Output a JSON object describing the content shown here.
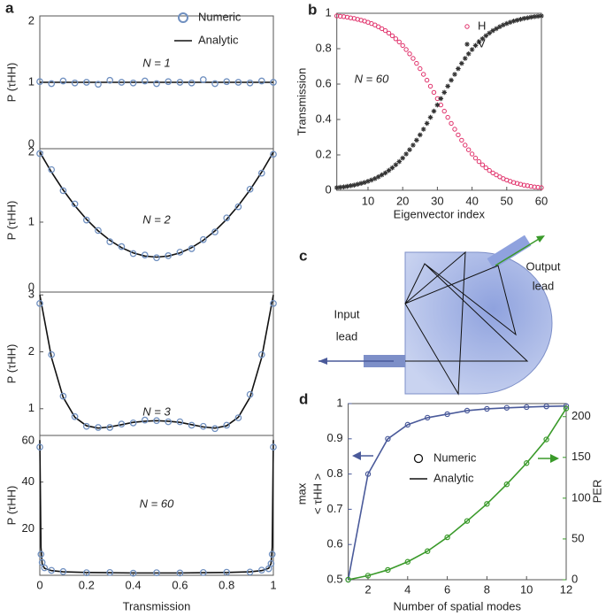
{
  "chart_data": [
    {
      "type": "line",
      "label": "a",
      "xlabel": "Transmission",
      "xlim": [
        0,
        1
      ],
      "xticks": [
        0,
        0.2,
        0.4,
        0.6,
        0.8,
        1
      ],
      "legend": [
        "Numeric",
        "Analytic"
      ],
      "numeric_color": "#7090c0",
      "analytic_color": "#111111",
      "subplots": [
        {
          "annotation": "N = 1",
          "ylabel": "P (τHH)",
          "ylim": [
            0,
            2
          ],
          "yticks": [
            0,
            1,
            2
          ],
          "x": [
            0,
            0.05,
            0.1,
            0.15,
            0.2,
            0.25,
            0.3,
            0.35,
            0.4,
            0.45,
            0.5,
            0.55,
            0.6,
            0.65,
            0.7,
            0.75,
            0.8,
            0.85,
            0.9,
            0.95,
            1
          ],
          "numeric": [
            1.01,
            0.98,
            1.02,
            0.99,
            1.0,
            0.97,
            1.03,
            1.0,
            0.99,
            1.02,
            0.98,
            1.01,
            1.0,
            0.99,
            1.04,
            0.98,
            1.01,
            1.0,
            0.99,
            1.02,
            1.0
          ],
          "analytic": [
            1,
            1,
            1,
            1,
            1,
            1,
            1,
            1,
            1,
            1,
            1,
            1,
            1,
            1,
            1,
            1,
            1,
            1,
            1,
            1,
            1
          ]
        },
        {
          "annotation": "N = 2",
          "ylabel": "P (τHH)",
          "ylim": [
            0,
            2.05
          ],
          "yticks": [
            0,
            1,
            2
          ],
          "x": [
            0,
            0.05,
            0.1,
            0.15,
            0.2,
            0.25,
            0.3,
            0.35,
            0.4,
            0.45,
            0.5,
            0.55,
            0.6,
            0.65,
            0.7,
            0.75,
            0.8,
            0.85,
            0.9,
            0.95,
            1
          ],
          "numeric": [
            1.98,
            1.75,
            1.45,
            1.26,
            1.03,
            0.88,
            0.72,
            0.65,
            0.55,
            0.53,
            0.49,
            0.52,
            0.57,
            0.62,
            0.75,
            0.86,
            1.06,
            1.22,
            1.47,
            1.7,
            1.97
          ],
          "analytic": [
            2,
            1.715,
            1.46,
            1.235,
            1.04,
            0.875,
            0.74,
            0.635,
            0.56,
            0.515,
            0.5,
            0.515,
            0.56,
            0.635,
            0.74,
            0.875,
            1.04,
            1.235,
            1.46,
            1.715,
            2
          ]
        },
        {
          "annotation": "N = 3",
          "ylabel": "P (τHH)",
          "ylim": [
            0.53,
            3.05
          ],
          "yticks": [
            1,
            2,
            3
          ],
          "x": [
            0,
            0.05,
            0.1,
            0.15,
            0.2,
            0.25,
            0.3,
            0.35,
            0.4,
            0.45,
            0.5,
            0.55,
            0.6,
            0.65,
            0.7,
            0.75,
            0.8,
            0.85,
            0.9,
            0.95,
            1
          ],
          "numeric": [
            2.85,
            1.95,
            1.22,
            0.86,
            0.69,
            0.67,
            0.67,
            0.73,
            0.75,
            0.8,
            0.79,
            0.77,
            0.77,
            0.71,
            0.69,
            0.65,
            0.71,
            0.84,
            1.25,
            1.95,
            2.85
          ],
          "analytic": [
            3.0,
            1.9,
            1.2,
            0.85,
            0.7,
            0.66,
            0.68,
            0.72,
            0.76,
            0.78,
            0.79,
            0.78,
            0.76,
            0.72,
            0.68,
            0.66,
            0.7,
            0.85,
            1.2,
            1.9,
            3.0
          ]
        },
        {
          "annotation": "N = 60",
          "ylabel": "P (τHH)",
          "ylim": [
            0,
            60
          ],
          "yticks": [
            20,
            40,
            60
          ],
          "x": [
            0,
            0.005,
            0.01,
            0.02,
            0.05,
            0.1,
            0.2,
            0.3,
            0.4,
            0.5,
            0.6,
            0.7,
            0.8,
            0.9,
            0.95,
            0.98,
            0.99,
            0.995,
            1
          ],
          "numeric": [
            55,
            9,
            5.5,
            3.2,
            2.1,
            1.6,
            1.1,
            1.2,
            0.9,
            1.1,
            1,
            1.2,
            1.3,
            1.4,
            2.2,
            2.8,
            5,
            9,
            55
          ],
          "analytic": [
            58,
            12,
            5,
            3,
            2,
            1.5,
            1.2,
            1.1,
            1,
            1,
            1,
            1.1,
            1.2,
            1.5,
            2,
            3,
            5,
            12,
            58
          ]
        }
      ]
    },
    {
      "type": "scatter",
      "label": "b",
      "xlabel": "Eigenvector index",
      "ylabel": "Transmission",
      "annotation": "N = 60",
      "xlim": [
        1,
        60
      ],
      "xticks": [
        10,
        20,
        30,
        40,
        50,
        60
      ],
      "ylim": [
        0,
        1
      ],
      "yticks": [
        0,
        0.2,
        0.4,
        0.6,
        0.8,
        1
      ],
      "x": [
        1,
        2,
        3,
        4,
        5,
        6,
        7,
        8,
        9,
        10,
        11,
        12,
        13,
        14,
        15,
        16,
        17,
        18,
        19,
        20,
        21,
        22,
        23,
        24,
        25,
        26,
        27,
        28,
        29,
        30,
        31,
        32,
        33,
        34,
        35,
        36,
        37,
        38,
        39,
        40,
        41,
        42,
        43,
        44,
        45,
        46,
        47,
        48,
        49,
        50,
        51,
        52,
        53,
        54,
        55,
        56,
        57,
        58,
        59,
        60
      ],
      "series": [
        {
          "name": "H",
          "color": "#e0306a",
          "marker": "circle",
          "values": [
            0.985,
            0.983,
            0.981,
            0.978,
            0.974,
            0.971,
            0.966,
            0.961,
            0.956,
            0.949,
            0.942,
            0.934,
            0.924,
            0.913,
            0.902,
            0.888,
            0.873,
            0.856,
            0.838,
            0.818,
            0.795,
            0.771,
            0.745,
            0.717,
            0.687,
            0.655,
            0.622,
            0.588,
            0.553,
            0.518,
            0.482,
            0.447,
            0.412,
            0.378,
            0.345,
            0.313,
            0.283,
            0.255,
            0.229,
            0.205,
            0.182,
            0.162,
            0.144,
            0.127,
            0.112,
            0.098,
            0.087,
            0.076,
            0.066,
            0.058,
            0.051,
            0.044,
            0.039,
            0.034,
            0.029,
            0.026,
            0.022,
            0.019,
            0.017,
            0.015
          ]
        },
        {
          "name": "V",
          "color": "#333333",
          "marker": "star",
          "values": [
            0.015,
            0.017,
            0.019,
            0.022,
            0.026,
            0.029,
            0.034,
            0.039,
            0.044,
            0.051,
            0.058,
            0.066,
            0.076,
            0.087,
            0.098,
            0.112,
            0.127,
            0.144,
            0.162,
            0.182,
            0.205,
            0.229,
            0.255,
            0.283,
            0.313,
            0.345,
            0.378,
            0.412,
            0.447,
            0.482,
            0.518,
            0.553,
            0.588,
            0.622,
            0.655,
            0.687,
            0.717,
            0.745,
            0.771,
            0.795,
            0.818,
            0.838,
            0.856,
            0.873,
            0.888,
            0.902,
            0.913,
            0.924,
            0.934,
            0.942,
            0.949,
            0.956,
            0.961,
            0.966,
            0.971,
            0.974,
            0.978,
            0.981,
            0.983,
            0.985
          ]
        }
      ]
    },
    {
      "type": "line",
      "label": "d",
      "xlabel": "Number of spatial modes",
      "ylabel": [
        "max",
        "< τHH >"
      ],
      "y2label": "PER",
      "legend": [
        "Numeric",
        "Analytic"
      ],
      "xlim": [
        1,
        12
      ],
      "xticks": [
        2,
        4,
        6,
        8,
        10,
        12
      ],
      "ylim": [
        0.5,
        1
      ],
      "yticks": [
        0.5,
        0.6,
        0.7,
        0.8,
        0.9,
        1
      ],
      "y2lim": [
        0,
        216
      ],
      "y2ticks": [
        0,
        50,
        100,
        150,
        200
      ],
      "x": [
        1,
        2,
        3,
        4,
        5,
        6,
        7,
        8,
        9,
        10,
        11,
        12
      ],
      "series": [
        {
          "color": "#4a5a9a",
          "values": [
            0.5,
            0.8,
            0.9,
            0.94,
            0.96,
            0.97,
            0.98,
            0.985,
            0.988,
            0.99,
            0.992,
            0.993
          ]
        },
        {
          "color": "#3a9a2a",
          "axis": "y2",
          "values": [
            0,
            5,
            12,
            22,
            35,
            52,
            72,
            93,
            117,
            143,
            172,
            210
          ]
        }
      ]
    }
  ],
  "diagram": {
    "label": "c",
    "input_label": [
      "Input",
      "lead"
    ],
    "output_label": [
      "Output",
      "lead"
    ]
  }
}
